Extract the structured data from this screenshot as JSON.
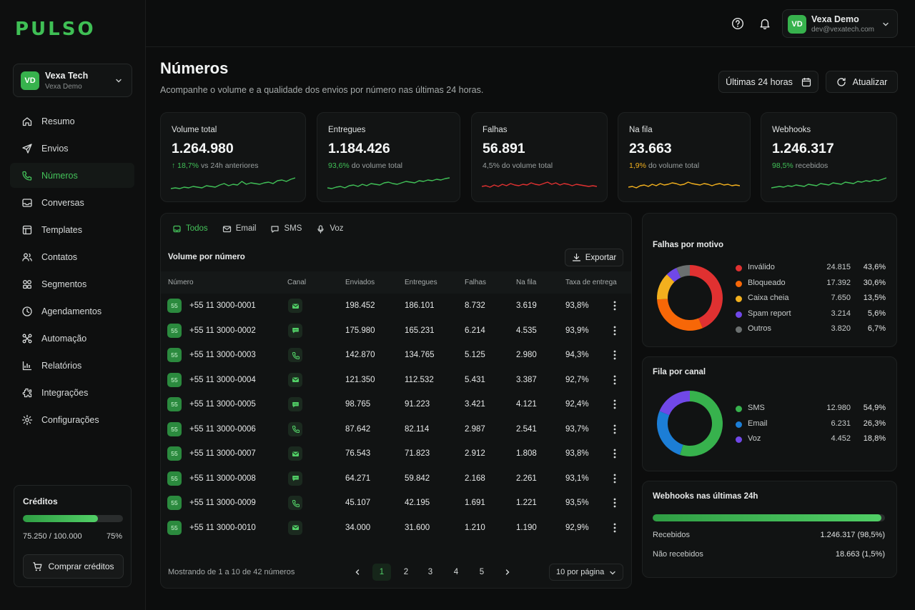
{
  "brand": {
    "logo": "PULSO",
    "accent": "#3fbf55"
  },
  "org": {
    "initials": "VD",
    "name": "Vexa Tech",
    "sub": "Vexa Demo"
  },
  "nav": [
    {
      "label": "Resumo",
      "icon": "home-icon"
    },
    {
      "label": "Envios",
      "icon": "send-icon"
    },
    {
      "label": "Números",
      "icon": "phone-icon",
      "active": true
    },
    {
      "label": "Conversas",
      "icon": "inbox-icon"
    },
    {
      "label": "Templates",
      "icon": "template-icon"
    },
    {
      "label": "Contatos",
      "icon": "users-icon"
    },
    {
      "label": "Segmentos",
      "icon": "segments-icon"
    },
    {
      "label": "Agendamentos",
      "icon": "clock-icon"
    },
    {
      "label": "Automação",
      "icon": "automation-icon"
    },
    {
      "label": "Relatórios",
      "icon": "chart-icon"
    },
    {
      "label": "Integrações",
      "icon": "puzzle-icon"
    },
    {
      "label": "Configurações",
      "icon": "gear-icon"
    }
  ],
  "credits": {
    "title": "Créditos",
    "count": "75.250 / 100.000",
    "pct_label": "75%",
    "fraction": 0.75,
    "buy_label": "Comprar créditos"
  },
  "user": {
    "initials": "VD",
    "name": "Vexa Demo",
    "email": "dev@vexatech.com"
  },
  "header": {
    "title": "Números",
    "subtitle": "Acompanhe o volume e a qualidade dos envios por número nas últimas 24 horas.",
    "range_label": "Últimas 24 horas",
    "refresh_label": "Atualizar"
  },
  "kpis": [
    {
      "label": "Volume total",
      "value": "1.264.980",
      "highlight": "↑ 18,7%",
      "note": "vs 24h anteriores",
      "color": "#40c057"
    },
    {
      "label": "Entregues",
      "value": "1.184.426",
      "highlight": "93,6%",
      "note": "do volume total",
      "color": "#40c057"
    },
    {
      "label": "Falhas",
      "value": "56.891",
      "highlight": "",
      "note": "4,5% do volume total",
      "color": "#e03131"
    },
    {
      "label": "Na fila",
      "value": "23.663",
      "highlight": "1,9%",
      "note": "do volume total",
      "color": "#f2b01e"
    },
    {
      "label": "Webhooks",
      "value": "1.246.317",
      "highlight": "98,5%",
      "note": "recebidos",
      "color": "#40c057"
    }
  ],
  "table": {
    "tabs": [
      {
        "label": "Todos",
        "icon": "all-icon",
        "active": true
      },
      {
        "label": "Email",
        "icon": "mail-icon"
      },
      {
        "label": "SMS",
        "icon": "sms-icon"
      },
      {
        "label": "Voz",
        "icon": "voice-icon"
      }
    ],
    "title": "Volume por número",
    "export_label": "Exportar",
    "columns": [
      "Número",
      "Canal",
      "Enviados",
      "Entregues",
      "Falhas",
      "Na fila",
      "Taxa de entrega"
    ],
    "rows": [
      {
        "badge": "55",
        "number": "+55 11 3000-0001",
        "channel": "email",
        "sent": "198.452",
        "delivered": "186.101",
        "failed": "8.732",
        "queued": "3.619",
        "rate": "93,8%"
      },
      {
        "badge": "55",
        "number": "+55 11 3000-0002",
        "channel": "sms",
        "sent": "175.980",
        "delivered": "165.231",
        "failed": "6.214",
        "queued": "4.535",
        "rate": "93,9%"
      },
      {
        "badge": "55",
        "number": "+55 11 3000-0003",
        "channel": "voice",
        "sent": "142.870",
        "delivered": "134.765",
        "failed": "5.125",
        "queued": "2.980",
        "rate": "94,3%"
      },
      {
        "badge": "55",
        "number": "+55 11 3000-0004",
        "channel": "email",
        "sent": "121.350",
        "delivered": "112.532",
        "failed": "5.431",
        "queued": "3.387",
        "rate": "92,7%"
      },
      {
        "badge": "55",
        "number": "+55 11 3000-0005",
        "channel": "sms",
        "sent": "98.765",
        "delivered": "91.223",
        "failed": "3.421",
        "queued": "4.121",
        "rate": "92,4%"
      },
      {
        "badge": "55",
        "number": "+55 11 3000-0006",
        "channel": "voice",
        "sent": "87.642",
        "delivered": "82.114",
        "failed": "2.987",
        "queued": "2.541",
        "rate": "93,7%"
      },
      {
        "badge": "55",
        "number": "+55 11 3000-0007",
        "channel": "email",
        "sent": "76.543",
        "delivered": "71.823",
        "failed": "2.912",
        "queued": "1.808",
        "rate": "93,8%"
      },
      {
        "badge": "55",
        "number": "+55 11 3000-0008",
        "channel": "sms",
        "sent": "64.271",
        "delivered": "59.842",
        "failed": "2.168",
        "queued": "2.261",
        "rate": "93,1%"
      },
      {
        "badge": "55",
        "number": "+55 11 3000-0009",
        "channel": "voice",
        "sent": "45.107",
        "delivered": "42.195",
        "failed": "1.691",
        "queued": "1.221",
        "rate": "93,5%"
      },
      {
        "badge": "55",
        "number": "+55 11 3000-0010",
        "channel": "email",
        "sent": "34.000",
        "delivered": "31.600",
        "failed": "1.210",
        "queued": "1.190",
        "rate": "92,9%"
      }
    ],
    "footer": "Mostrando de 1 a 10 de 42 números",
    "pages": [
      "1",
      "2",
      "3",
      "4",
      "5"
    ],
    "current_page": "1",
    "per_page": "10 por página"
  },
  "failures": {
    "title": "Falhas por motivo",
    "items": [
      {
        "label": "Inválido",
        "value": "24.815",
        "pct": "43,6%",
        "share": 43.6,
        "color": "#e03131"
      },
      {
        "label": "Bloqueado",
        "value": "17.392",
        "pct": "30,6%",
        "share": 30.6,
        "color": "#f76707"
      },
      {
        "label": "Caixa cheia",
        "value": "7.650",
        "pct": "13,5%",
        "share": 13.5,
        "color": "#f2b01e"
      },
      {
        "label": "Spam report",
        "value": "3.214",
        "pct": "5,6%",
        "share": 5.6,
        "color": "#7048e8"
      },
      {
        "label": "Outros",
        "value": "3.820",
        "pct": "6,7%",
        "share": 6.7,
        "color": "#6b7070"
      }
    ]
  },
  "queue": {
    "title": "Fila por canal",
    "items": [
      {
        "label": "SMS",
        "value": "12.980",
        "pct": "54,9%",
        "share": 54.9,
        "color": "#37b24d"
      },
      {
        "label": "Email",
        "value": "6.231",
        "pct": "26,3%",
        "share": 26.3,
        "color": "#1c7ed6"
      },
      {
        "label": "Voz",
        "value": "4.452",
        "pct": "18,8%",
        "share": 18.8,
        "color": "#7048e8"
      }
    ]
  },
  "webhooks": {
    "title": "Webhooks nas últimas 24h",
    "fraction": 0.985,
    "received_label": "Recebidos",
    "received_value": "1.246.317 (98,5%)",
    "missed_label": "Não recebidos",
    "missed_value": "18.663 (1,5%)"
  }
}
